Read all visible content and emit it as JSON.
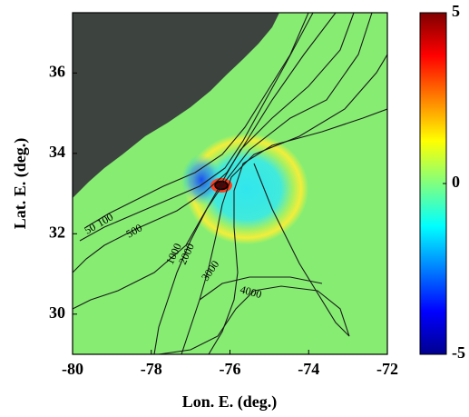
{
  "chart_data": {
    "type": "map",
    "xlabel": "Lon. E. (deg.)",
    "ylabel": "Lat. E. (deg.)",
    "xlim": [
      -80,
      -72
    ],
    "xticks": [
      -80,
      -78,
      -76,
      -74,
      -72
    ],
    "ylim": [
      29,
      37.5
    ],
    "yticks": [
      30,
      32,
      34,
      36
    ],
    "contour_labels": [
      "50",
      "100",
      "500",
      "1000",
      "2000",
      "3000",
      "4000"
    ],
    "colorbar": {
      "clim": [
        -5,
        5
      ],
      "ticks": [
        -5,
        0,
        5
      ]
    }
  }
}
